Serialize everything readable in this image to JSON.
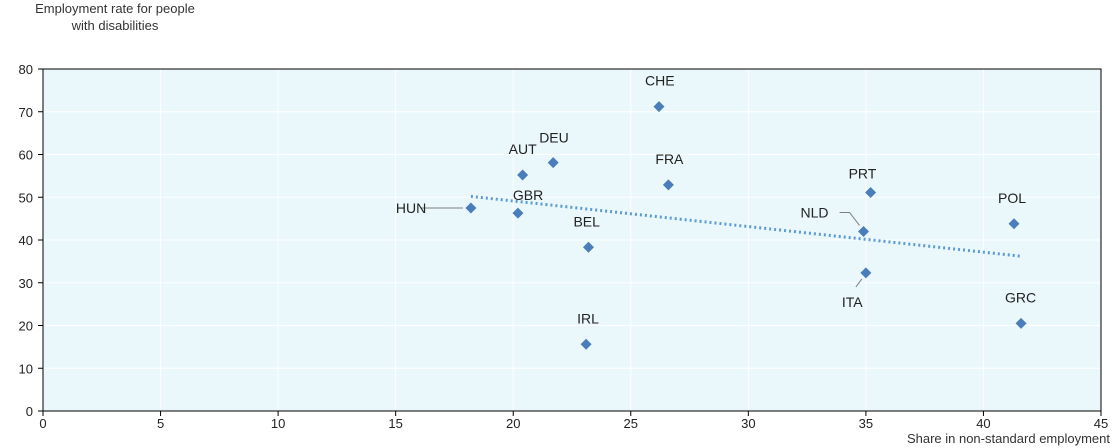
{
  "colors": {
    "plot_background": "#eaf7fb",
    "grid": "#ffffff",
    "marker": "#4a7ebb",
    "trendline": "#5b9bd5",
    "leader": "#7f7f7f"
  },
  "chart_data": {
    "type": "scatter",
    "ylabel_line1": "Employment rate for people",
    "ylabel_line2": "with disabilities",
    "xlabel": "Share in non-standard employment",
    "xlim": [
      0,
      45
    ],
    "ylim": [
      0,
      80
    ],
    "x_ticks": [
      "0",
      "5",
      "10",
      "15",
      "20",
      "25",
      "30",
      "35",
      "40",
      "45"
    ],
    "y_ticks": [
      "0",
      "10",
      "20",
      "30",
      "40",
      "50",
      "60",
      "70",
      "80"
    ],
    "grid": true,
    "points": [
      {
        "label": "HUN",
        "x": 18.2,
        "y": 47.5
      },
      {
        "label": "GBR",
        "x": 20.2,
        "y": 46.3
      },
      {
        "label": "AUT",
        "x": 20.4,
        "y": 55.2
      },
      {
        "label": "DEU",
        "x": 21.7,
        "y": 58.1
      },
      {
        "label": "IRL",
        "x": 23.1,
        "y": 15.6
      },
      {
        "label": "BEL",
        "x": 23.2,
        "y": 38.3
      },
      {
        "label": "CHE",
        "x": 26.2,
        "y": 71.2
      },
      {
        "label": "FRA",
        "x": 26.6,
        "y": 52.9
      },
      {
        "label": "NLD",
        "x": 34.9,
        "y": 42.0
      },
      {
        "label": "ITA",
        "x": 35.0,
        "y": 32.3
      },
      {
        "label": "PRT",
        "x": 35.2,
        "y": 51.1
      },
      {
        "label": "POL",
        "x": 41.3,
        "y": 43.8
      },
      {
        "label": "GRC",
        "x": 41.6,
        "y": 20.5
      }
    ],
    "trendline": {
      "x": [
        18.2,
        41.6
      ],
      "y": [
        50.2,
        36.2
      ]
    }
  }
}
